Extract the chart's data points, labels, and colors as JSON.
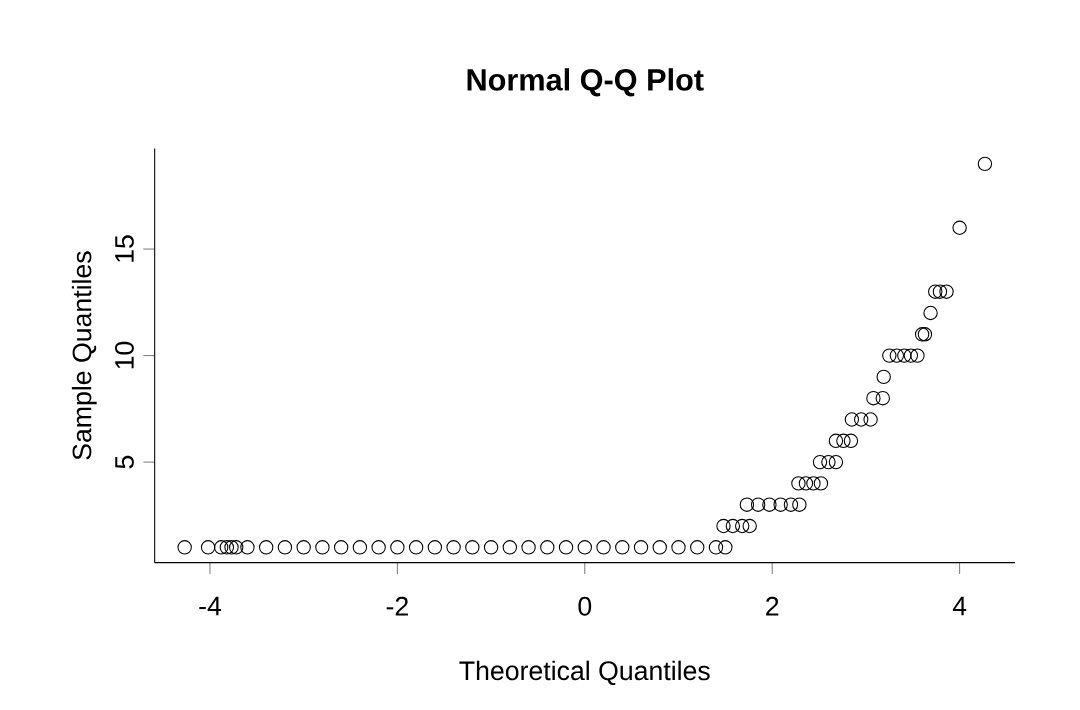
{
  "chart_data": {
    "type": "scatter",
    "title": "Normal Q-Q Plot",
    "xlabel": "Theoretical Quantiles",
    "ylabel": "Sample Quantiles",
    "x": [
      -4.27,
      -4.02,
      -3.88,
      -3.82,
      -3.77,
      -3.72,
      -3.6,
      -3.4,
      -3.2,
      -3.0,
      -2.8,
      -2.6,
      -2.4,
      -2.2,
      -2.0,
      -1.8,
      -1.6,
      -1.4,
      -1.2,
      -1.0,
      -0.8,
      -0.6,
      -0.4,
      -0.2,
      0.0,
      0.2,
      0.4,
      0.6,
      0.8,
      1.0,
      1.2,
      1.4,
      1.5,
      1.48,
      1.58,
      1.68,
      1.76,
      1.73,
      1.85,
      1.97,
      2.09,
      2.2,
      2.29,
      2.28,
      2.36,
      2.44,
      2.52,
      2.51,
      2.6,
      2.68,
      2.68,
      2.76,
      2.84,
      2.85,
      2.95,
      3.05,
      3.08,
      3.18,
      3.19,
      3.25,
      3.33,
      3.41,
      3.48,
      3.55,
      3.6,
      3.63,
      3.69,
      3.74,
      3.79,
      3.86,
      4.0,
      4.27
    ],
    "values": [
      1,
      1,
      1,
      1,
      1,
      1,
      1,
      1,
      1,
      1,
      1,
      1,
      1,
      1,
      1,
      1,
      1,
      1,
      1,
      1,
      1,
      1,
      1,
      1,
      1,
      1,
      1,
      1,
      1,
      1,
      1,
      1,
      1,
      2,
      2,
      2,
      2,
      3,
      3,
      3,
      3,
      3,
      3,
      4,
      4,
      4,
      4,
      5,
      5,
      5,
      6,
      6,
      6,
      7,
      7,
      7,
      8,
      8,
      9,
      10,
      10,
      10,
      10,
      10,
      11,
      11,
      12,
      13,
      13,
      13,
      16,
      19
    ],
    "color": "#000000",
    "marker": "circle",
    "xlim": [
      -4.59,
      4.59
    ],
    "ylim": [
      0.28,
      19.72
    ],
    "xticks": [
      -4,
      -2,
      0,
      2,
      4
    ],
    "yticks": [
      5,
      10,
      15
    ]
  }
}
